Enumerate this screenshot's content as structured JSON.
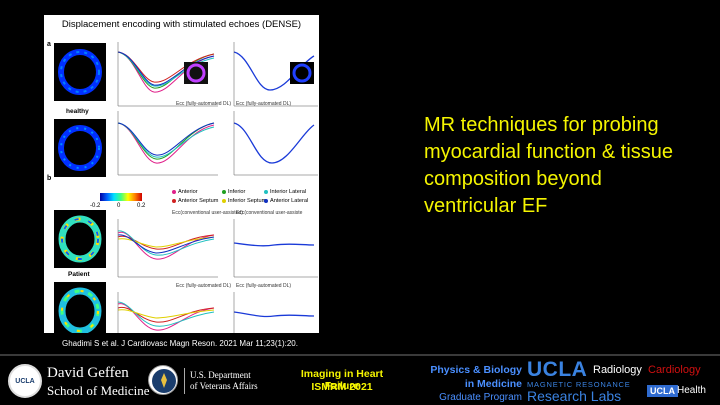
{
  "figure": {
    "title": "Displacement encoding with stimulated echoes (DENSE)",
    "panel_a_label": "a",
    "panel_b_label": "b",
    "row_healthy": "healthy",
    "row_patient": "Patient",
    "colorbar": {
      "min": "-0.2",
      "mid": "0",
      "max": "0.2"
    },
    "chart_titles": {
      "a2_left": "Ecc (fully-automated DL)",
      "a2_right": "Ecc (fully-automated DL)",
      "b1_left": "Ecc(conventional user-assisted)",
      "b1_right": "Ecc(conventional user-assiste",
      "b2_left": "Ecc (fully-automated DL)",
      "b2_right": "Ecc (fully-automated DL)"
    },
    "legend": [
      {
        "label": "Anterior",
        "color": "#e0208a"
      },
      {
        "label": "Inferior",
        "color": "#20a020"
      },
      {
        "label": "Interior Lateral",
        "color": "#20c0c0"
      },
      {
        "label": "Anterior Septum",
        "color": "#d02020"
      },
      {
        "label": "Inferior Septum",
        "color": "#e0d000"
      },
      {
        "label": "Anterior Lateral",
        "color": "#1030c0"
      }
    ]
  },
  "citation": "Ghadimi S et al. J Cardiovasc Magn Reson. 2021 Mar 11;23(1):20.",
  "headline": "MR techniques for probing myocardial function & tissue composition beyond ventricular EF",
  "footer": {
    "seal_text": "UCLA",
    "geffen_line1": "David Geffen",
    "geffen_line2": "School of Medicine",
    "va_line1": "U.S. Department",
    "va_line2": "of Veterans Affairs",
    "event_line1": "Imaging in Heart Failure",
    "event_line2": "ISMRM 2021",
    "pb_line1": "Physics & Biology",
    "pb_line2": "in Medicine",
    "pb_line3": "Graduate Program",
    "ucla_logo": "UCLA",
    "mr_line": "MAGNETIC RESONANCE",
    "rl_line": "Research Labs",
    "radiology": "Radiology",
    "cardiology": "Cardiology",
    "health_badge": "UCLA",
    "health_text": "Health"
  }
}
